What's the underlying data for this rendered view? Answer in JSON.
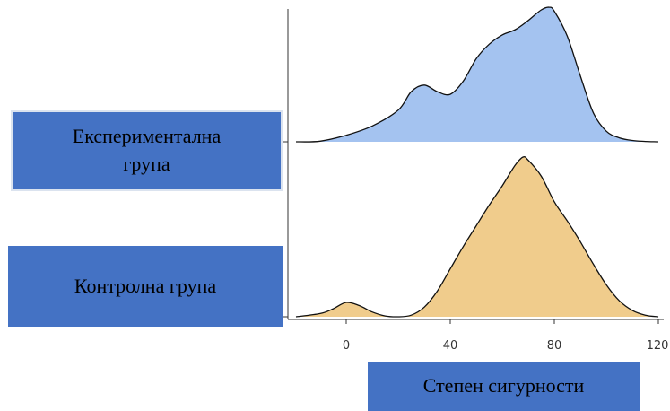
{
  "chart_data": {
    "type": "area",
    "subtype": "ridgeline-density",
    "title": "",
    "xlabel": "Степен сигурности",
    "ylabel": "",
    "xlim": [
      -20,
      120
    ],
    "xticks": [
      0,
      40,
      80,
      120
    ],
    "grid": false,
    "legend": "none",
    "series": [
      {
        "name": "Експериментална група",
        "color": "#a4c3f0",
        "x": [
          -20,
          -10,
          0,
          10,
          20,
          25,
          30,
          35,
          40,
          45,
          50,
          55,
          60,
          65,
          70,
          75,
          78,
          80,
          85,
          90,
          95,
          100,
          105,
          110,
          115,
          120
        ],
        "y": [
          0,
          0.005,
          0.05,
          0.12,
          0.24,
          0.38,
          0.43,
          0.38,
          0.36,
          0.46,
          0.63,
          0.74,
          0.81,
          0.85,
          0.92,
          1.0,
          1.02,
          0.99,
          0.8,
          0.5,
          0.22,
          0.08,
          0.03,
          0.01,
          0.003,
          0
        ]
      },
      {
        "name": "Контролна група",
        "color": "#f0cc8c",
        "x": [
          -20,
          -10,
          -5,
          0,
          5,
          10,
          15,
          20,
          25,
          30,
          35,
          40,
          45,
          50,
          55,
          60,
          65,
          68,
          70,
          75,
          80,
          85,
          90,
          95,
          100,
          105,
          110,
          115,
          120
        ],
        "y": [
          0,
          0.02,
          0.05,
          0.09,
          0.07,
          0.03,
          0.005,
          0.0,
          0.01,
          0.06,
          0.16,
          0.3,
          0.44,
          0.57,
          0.7,
          0.82,
          0.95,
          1.0,
          0.98,
          0.88,
          0.72,
          0.6,
          0.47,
          0.33,
          0.2,
          0.1,
          0.04,
          0.01,
          0
        ]
      }
    ]
  }
}
